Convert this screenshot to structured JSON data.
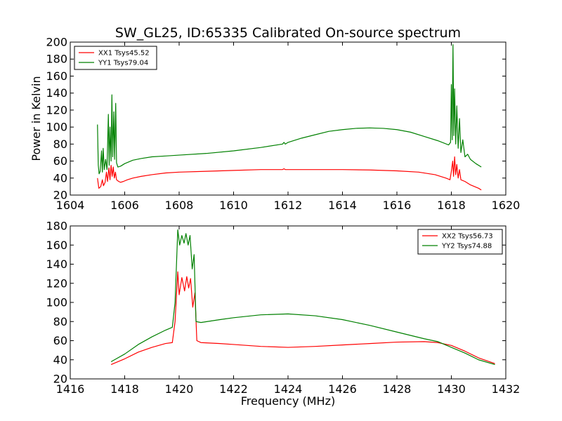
{
  "chart_data": [
    {
      "type": "line",
      "title": "SW_GL25, ID:65335 Calibrated On-source spectrum",
      "xlabel": "",
      "ylabel": "Power in Kelvin",
      "xlim": [
        1604,
        1620
      ],
      "ylim": [
        20,
        200
      ],
      "xticks": [
        "1604",
        "1606",
        "1608",
        "1610",
        "1612",
        "1614",
        "1616",
        "1618",
        "1620"
      ],
      "yticks": [
        "20",
        "40",
        "60",
        "80",
        "100",
        "120",
        "140",
        "160",
        "180",
        "200"
      ],
      "grid": false,
      "legend": "top-left",
      "series": [
        {
          "name": "XX1 Tsys45.52",
          "color": "#ff0000",
          "points": [
            [
              1605.0,
              40
            ],
            [
              1605.05,
              28
            ],
            [
              1605.12,
              30
            ],
            [
              1605.18,
              38
            ],
            [
              1605.22,
              31
            ],
            [
              1605.28,
              35
            ],
            [
              1605.33,
              47
            ],
            [
              1605.37,
              36
            ],
            [
              1605.42,
              52
            ],
            [
              1605.46,
              38
            ],
            [
              1605.5,
              55
            ],
            [
              1605.54,
              42
            ],
            [
              1605.58,
              53
            ],
            [
              1605.62,
              40
            ],
            [
              1605.66,
              47
            ],
            [
              1605.7,
              38
            ],
            [
              1605.78,
              36
            ],
            [
              1605.85,
              35
            ],
            [
              1605.95,
              36
            ],
            [
              1606.1,
              38
            ],
            [
              1606.3,
              40
            ],
            [
              1606.6,
              42
            ],
            [
              1607.0,
              44
            ],
            [
              1607.5,
              46
            ],
            [
              1608.0,
              47
            ],
            [
              1609.0,
              48
            ],
            [
              1610.0,
              49
            ],
            [
              1611.0,
              50
            ],
            [
              1611.8,
              50
            ],
            [
              1611.85,
              51
            ],
            [
              1611.9,
              50
            ],
            [
              1612.0,
              50
            ],
            [
              1613.0,
              50
            ],
            [
              1614.0,
              50
            ],
            [
              1615.0,
              49.5
            ],
            [
              1616.0,
              48.5
            ],
            [
              1616.8,
              47
            ],
            [
              1617.4,
              44
            ],
            [
              1617.8,
              40
            ],
            [
              1617.95,
              38
            ],
            [
              1618.0,
              48
            ],
            [
              1618.05,
              60
            ],
            [
              1618.08,
              42
            ],
            [
              1618.12,
              65
            ],
            [
              1618.16,
              44
            ],
            [
              1618.2,
              56
            ],
            [
              1618.25,
              40
            ],
            [
              1618.3,
              50
            ],
            [
              1618.35,
              38
            ],
            [
              1618.5,
              36
            ],
            [
              1618.7,
              32
            ],
            [
              1619.0,
              28
            ],
            [
              1619.1,
              26
            ]
          ]
        },
        {
          "name": "YY1 Tsys79.04",
          "color": "#008000",
          "points": [
            [
              1605.0,
              103
            ],
            [
              1605.03,
              55
            ],
            [
              1605.06,
              45
            ],
            [
              1605.1,
              48
            ],
            [
              1605.15,
              72
            ],
            [
              1605.18,
              47
            ],
            [
              1605.21,
              75
            ],
            [
              1605.25,
              50
            ],
            [
              1605.3,
              62
            ],
            [
              1605.35,
              50
            ],
            [
              1605.4,
              115
            ],
            [
              1605.43,
              55
            ],
            [
              1605.46,
              100
            ],
            [
              1605.5,
              60
            ],
            [
              1605.53,
              138
            ],
            [
              1605.56,
              65
            ],
            [
              1605.6,
              118
            ],
            [
              1605.63,
              62
            ],
            [
              1605.67,
              128
            ],
            [
              1605.7,
              58
            ],
            [
              1605.75,
              53
            ],
            [
              1605.85,
              54
            ],
            [
              1606.0,
              57
            ],
            [
              1606.3,
              61
            ],
            [
              1606.6,
              63
            ],
            [
              1607.0,
              65
            ],
            [
              1607.5,
              66
            ],
            [
              1608.0,
              67
            ],
            [
              1609.0,
              69
            ],
            [
              1610.0,
              72
            ],
            [
              1611.0,
              76
            ],
            [
              1611.8,
              80
            ],
            [
              1611.85,
              82
            ],
            [
              1611.9,
              80
            ],
            [
              1612.0,
              82
            ],
            [
              1612.5,
              87
            ],
            [
              1613.0,
              91
            ],
            [
              1613.5,
              95
            ],
            [
              1614.0,
              97
            ],
            [
              1614.5,
              98.5
            ],
            [
              1615.0,
              99
            ],
            [
              1615.5,
              98.5
            ],
            [
              1616.0,
              97
            ],
            [
              1616.5,
              94
            ],
            [
              1617.0,
              89
            ],
            [
              1617.5,
              84
            ],
            [
              1617.9,
              79
            ],
            [
              1617.97,
              82
            ],
            [
              1618.0,
              150
            ],
            [
              1618.03,
              85
            ],
            [
              1618.06,
              197
            ],
            [
              1618.09,
              90
            ],
            [
              1618.12,
              145
            ],
            [
              1618.16,
              80
            ],
            [
              1618.2,
              125
            ],
            [
              1618.25,
              75
            ],
            [
              1618.3,
              110
            ],
            [
              1618.35,
              70
            ],
            [
              1618.42,
              85
            ],
            [
              1618.5,
              65
            ],
            [
              1618.6,
              68
            ],
            [
              1618.7,
              62
            ],
            [
              1618.9,
              57
            ],
            [
              1619.1,
              53
            ]
          ]
        }
      ]
    },
    {
      "type": "line",
      "title": "",
      "xlabel": "Frequency (MHz)",
      "ylabel": "",
      "xlim": [
        1416,
        1432
      ],
      "ylim": [
        20,
        180
      ],
      "xticks": [
        "1416",
        "1418",
        "1420",
        "1422",
        "1424",
        "1426",
        "1428",
        "1430",
        "1432"
      ],
      "yticks": [
        "20",
        "40",
        "60",
        "80",
        "100",
        "120",
        "140",
        "160",
        "180"
      ],
      "grid": false,
      "legend": "top-right",
      "series": [
        {
          "name": "XX2 Tsys56.73",
          "color": "#ff0000",
          "points": [
            [
              1417.5,
              35
            ],
            [
              1418.0,
              41
            ],
            [
              1418.5,
              48
            ],
            [
              1419.0,
              53
            ],
            [
              1419.5,
              57
            ],
            [
              1419.75,
              58
            ],
            [
              1419.85,
              80
            ],
            [
              1419.95,
              132
            ],
            [
              1420.0,
              108
            ],
            [
              1420.1,
              126
            ],
            [
              1420.2,
              112
            ],
            [
              1420.28,
              127
            ],
            [
              1420.35,
              115
            ],
            [
              1420.42,
              125
            ],
            [
              1420.5,
              95
            ],
            [
              1420.58,
              110
            ],
            [
              1420.65,
              60
            ],
            [
              1420.8,
              58
            ],
            [
              1421.5,
              57
            ],
            [
              1422.0,
              56
            ],
            [
              1423.0,
              54
            ],
            [
              1424.0,
              53
            ],
            [
              1425.0,
              54
            ],
            [
              1426.0,
              55.5
            ],
            [
              1427.0,
              57
            ],
            [
              1428.0,
              58.5
            ],
            [
              1429.0,
              59
            ],
            [
              1429.5,
              58
            ],
            [
              1430.0,
              55
            ],
            [
              1430.5,
              49
            ],
            [
              1431.0,
              42
            ],
            [
              1431.6,
              36
            ]
          ]
        },
        {
          "name": "YY2 Tsys74.88",
          "color": "#008000",
          "points": [
            [
              1417.5,
              38
            ],
            [
              1418.0,
              46
            ],
            [
              1418.5,
              56
            ],
            [
              1419.0,
              64
            ],
            [
              1419.5,
              71
            ],
            [
              1419.75,
              74
            ],
            [
              1419.85,
              100
            ],
            [
              1419.95,
              176
            ],
            [
              1420.02,
              160
            ],
            [
              1420.1,
              170
            ],
            [
              1420.18,
              162
            ],
            [
              1420.25,
              172
            ],
            [
              1420.33,
              160
            ],
            [
              1420.4,
              170
            ],
            [
              1420.48,
              135
            ],
            [
              1420.55,
              150
            ],
            [
              1420.62,
              80
            ],
            [
              1420.8,
              79
            ],
            [
              1421.5,
              82
            ],
            [
              1422.0,
              84
            ],
            [
              1423.0,
              87
            ],
            [
              1424.0,
              88
            ],
            [
              1425.0,
              86
            ],
            [
              1426.0,
              82
            ],
            [
              1427.0,
              76
            ],
            [
              1428.0,
              69
            ],
            [
              1429.0,
              62
            ],
            [
              1429.5,
              59
            ],
            [
              1430.0,
              53
            ],
            [
              1430.5,
              47
            ],
            [
              1431.0,
              40
            ],
            [
              1431.6,
              35
            ]
          ]
        }
      ]
    }
  ]
}
